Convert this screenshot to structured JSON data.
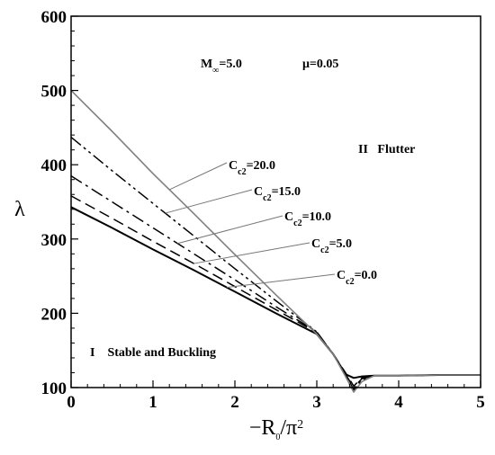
{
  "chart_data": {
    "type": "line",
    "title": "",
    "xlabel": "−R0/π²",
    "ylabel": "λ",
    "xlim": [
      0,
      5
    ],
    "ylim": [
      100,
      600
    ],
    "xticks": [
      "0",
      "1",
      "2",
      "3",
      "4",
      "5"
    ],
    "yticks": [
      "100",
      "200",
      "300",
      "400",
      "500",
      "600"
    ],
    "grid": false,
    "annotations": {
      "mach": "M∞=5.0",
      "mu": "μ=0.05",
      "region_flutter": "II   Flutter",
      "region_stable": "I    Stable and Buckling"
    },
    "series": [
      {
        "name": "Cc2=0.0",
        "style": "solid-thick",
        "color": "#000000",
        "x": [
          0,
          0.5,
          1,
          1.5,
          2,
          2.5,
          3,
          3.2,
          3.35,
          3.45,
          3.55,
          3.7,
          4,
          4.5,
          5
        ],
        "y": [
          343,
          315,
          286,
          258,
          229,
          200,
          172,
          145,
          118,
          113,
          115,
          116,
          116,
          117,
          117
        ]
      },
      {
        "name": "Cc2=5.0",
        "style": "dashed",
        "color": "#000000",
        "x": [
          0,
          0.5,
          1,
          1.5,
          2,
          2.5,
          3,
          3.2,
          3.35,
          3.45,
          3.55,
          3.7,
          4,
          4.5,
          5
        ],
        "y": [
          358,
          328,
          297,
          267,
          236,
          205,
          174,
          145,
          120,
          102,
          113,
          116,
          116,
          117,
          117
        ]
      },
      {
        "name": "Cc2=10.0",
        "style": "dash-dot",
        "color": "#000000",
        "x": [
          0,
          0.5,
          1,
          1.5,
          2,
          2.5,
          3,
          3.2,
          3.35,
          3.45,
          3.55,
          3.7,
          4,
          4.5,
          5
        ],
        "y": [
          385,
          350,
          315,
          280,
          245,
          209,
          175,
          145,
          118,
          100,
          112,
          116,
          116,
          117,
          117
        ]
      },
      {
        "name": "Cc2=15.0",
        "style": "dash-dot-dot",
        "color": "#000000",
        "x": [
          0,
          0.5,
          1,
          1.5,
          2,
          2.5,
          3,
          3.2,
          3.35,
          3.45,
          3.55,
          3.7,
          4,
          4.5,
          5
        ],
        "y": [
          437,
          392,
          348,
          304,
          260,
          217,
          175,
          145,
          118,
          97,
          110,
          116,
          116,
          117,
          117
        ]
      },
      {
        "name": "Cc2=20.0",
        "style": "solid-thin",
        "color": "#808080",
        "x": [
          0,
          0.5,
          1,
          1.5,
          2,
          2.5,
          3,
          3.2,
          3.35,
          3.45,
          3.55,
          3.7,
          4,
          4.5,
          5
        ],
        "y": [
          500,
          445,
          388,
          334,
          279,
          225,
          172,
          145,
          115,
          94,
          108,
          116,
          116,
          117,
          117
        ]
      }
    ]
  }
}
